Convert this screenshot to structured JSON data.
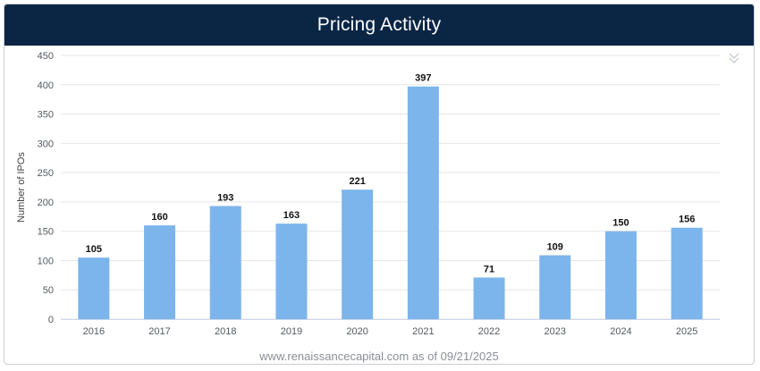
{
  "title": "Pricing Activity",
  "footer": "www.renaissancecapital.com as of 09/21/2025",
  "icons": {
    "menu": "chevron-double-down-icon"
  },
  "colors": {
    "header_bg": "#0b2545",
    "bar": "#7cb5ec",
    "grid": "#e6e6e6"
  },
  "chart_data": {
    "type": "bar",
    "categories": [
      "2016",
      "2017",
      "2018",
      "2019",
      "2020",
      "2021",
      "2022",
      "2023",
      "2024",
      "2025"
    ],
    "values": [
      105,
      160,
      193,
      163,
      221,
      397,
      71,
      109,
      150,
      156
    ],
    "ylabel": "Number of IPOs",
    "xlabel": "",
    "ylim": [
      0,
      450
    ],
    "yticks": [
      0,
      50,
      100,
      150,
      200,
      250,
      300,
      350,
      400,
      450
    ],
    "grid": true,
    "data_labels": true
  }
}
